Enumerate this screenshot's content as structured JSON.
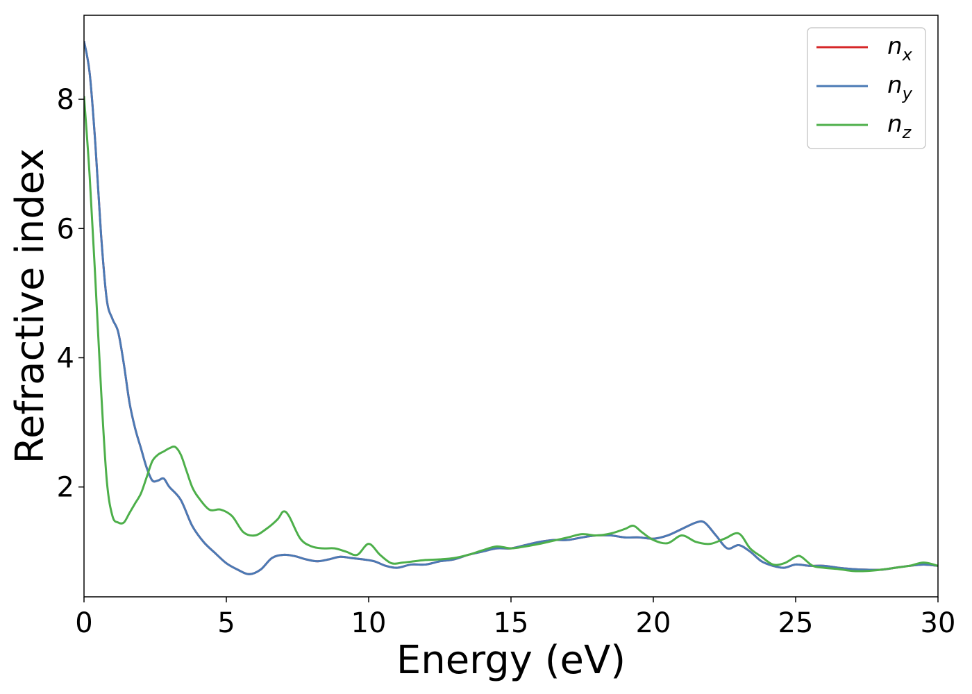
{
  "chart_data": {
    "type": "line",
    "title": "",
    "xlabel": "Energy (eV)",
    "ylabel": "Refractive index",
    "xlim": [
      0,
      30
    ],
    "ylim": [
      0.3,
      9.3
    ],
    "xticks": [
      0,
      5,
      10,
      15,
      20,
      25,
      30
    ],
    "yticks": [
      2,
      4,
      6,
      8
    ],
    "grid": false,
    "legend_position": "top-right",
    "series": [
      {
        "name": "n_x",
        "label_base": "n",
        "label_sub": "x",
        "color": "#d62728",
        "x": [
          0.0,
          0.2,
          0.4,
          0.6,
          0.8,
          1.0,
          1.2,
          1.4,
          1.6,
          1.8,
          2.0,
          2.2,
          2.4,
          2.6,
          2.8,
          3.0,
          3.4,
          3.8,
          4.2,
          4.6,
          5.0,
          5.4,
          5.8,
          6.2,
          6.6,
          7.0,
          7.4,
          7.8,
          8.2,
          8.6,
          9.0,
          9.4,
          9.8,
          10.2,
          10.6,
          11.0,
          11.5,
          12.0,
          12.5,
          13.0,
          13.5,
          14.0,
          14.5,
          15.0,
          15.5,
          16.0,
          16.5,
          17.0,
          17.5,
          18.0,
          18.5,
          19.0,
          19.5,
          20.0,
          20.5,
          21.0,
          21.5,
          21.8,
          22.2,
          22.6,
          23.0,
          23.4,
          23.8,
          24.2,
          24.6,
          25.0,
          25.5,
          26.0,
          26.5,
          27.0,
          27.5,
          28.0,
          28.5,
          29.0,
          29.5,
          30.0
        ],
        "y": [
          8.9,
          8.4,
          7.3,
          5.9,
          4.9,
          4.6,
          4.4,
          3.9,
          3.3,
          2.9,
          2.6,
          2.3,
          2.1,
          2.1,
          2.13,
          2.0,
          1.8,
          1.4,
          1.15,
          0.98,
          0.82,
          0.72,
          0.65,
          0.72,
          0.9,
          0.95,
          0.93,
          0.88,
          0.85,
          0.88,
          0.92,
          0.9,
          0.88,
          0.85,
          0.78,
          0.75,
          0.8,
          0.8,
          0.85,
          0.88,
          0.95,
          1.0,
          1.05,
          1.05,
          1.1,
          1.15,
          1.18,
          1.18,
          1.22,
          1.25,
          1.25,
          1.22,
          1.22,
          1.2,
          1.25,
          1.35,
          1.45,
          1.45,
          1.25,
          1.05,
          1.1,
          1.0,
          0.85,
          0.78,
          0.75,
          0.8,
          0.78,
          0.78,
          0.75,
          0.73,
          0.72,
          0.72,
          0.75,
          0.78,
          0.8,
          0.78
        ]
      },
      {
        "name": "n_y",
        "label_base": "n",
        "label_sub": "y",
        "color": "#4a7ab5",
        "x": [
          0.0,
          0.2,
          0.4,
          0.6,
          0.8,
          1.0,
          1.2,
          1.4,
          1.6,
          1.8,
          2.0,
          2.2,
          2.4,
          2.6,
          2.8,
          3.0,
          3.4,
          3.8,
          4.2,
          4.6,
          5.0,
          5.4,
          5.8,
          6.2,
          6.6,
          7.0,
          7.4,
          7.8,
          8.2,
          8.6,
          9.0,
          9.4,
          9.8,
          10.2,
          10.6,
          11.0,
          11.5,
          12.0,
          12.5,
          13.0,
          13.5,
          14.0,
          14.5,
          15.0,
          15.5,
          16.0,
          16.5,
          17.0,
          17.5,
          18.0,
          18.5,
          19.0,
          19.5,
          20.0,
          20.5,
          21.0,
          21.5,
          21.8,
          22.2,
          22.6,
          23.0,
          23.4,
          23.8,
          24.2,
          24.6,
          25.0,
          25.5,
          26.0,
          26.5,
          27.0,
          27.5,
          28.0,
          28.5,
          29.0,
          29.5,
          30.0
        ],
        "y": [
          8.9,
          8.4,
          7.3,
          5.9,
          4.9,
          4.6,
          4.4,
          3.9,
          3.3,
          2.9,
          2.6,
          2.3,
          2.1,
          2.1,
          2.13,
          2.0,
          1.8,
          1.4,
          1.15,
          0.98,
          0.82,
          0.72,
          0.65,
          0.72,
          0.9,
          0.95,
          0.93,
          0.88,
          0.85,
          0.88,
          0.92,
          0.9,
          0.88,
          0.85,
          0.78,
          0.75,
          0.8,
          0.8,
          0.85,
          0.88,
          0.95,
          1.0,
          1.05,
          1.05,
          1.1,
          1.15,
          1.18,
          1.18,
          1.22,
          1.25,
          1.25,
          1.22,
          1.22,
          1.2,
          1.25,
          1.35,
          1.45,
          1.45,
          1.25,
          1.05,
          1.1,
          1.0,
          0.85,
          0.78,
          0.75,
          0.8,
          0.78,
          0.78,
          0.75,
          0.73,
          0.72,
          0.72,
          0.75,
          0.78,
          0.8,
          0.78
        ]
      },
      {
        "name": "n_z",
        "label_base": "n",
        "label_sub": "z",
        "color": "#4daf4a",
        "x": [
          0.0,
          0.2,
          0.4,
          0.6,
          0.8,
          1.0,
          1.2,
          1.4,
          1.6,
          1.8,
          2.0,
          2.2,
          2.4,
          2.6,
          2.8,
          3.0,
          3.2,
          3.4,
          3.6,
          3.8,
          4.0,
          4.4,
          4.8,
          5.2,
          5.6,
          6.0,
          6.4,
          6.8,
          7.0,
          7.2,
          7.6,
          8.0,
          8.4,
          8.8,
          9.2,
          9.6,
          10.0,
          10.4,
          10.8,
          11.2,
          11.6,
          12.0,
          12.5,
          13.0,
          13.5,
          14.0,
          14.5,
          15.0,
          15.5,
          16.0,
          16.5,
          17.0,
          17.5,
          18.0,
          18.5,
          19.0,
          19.3,
          19.6,
          20.0,
          20.5,
          21.0,
          21.5,
          22.0,
          22.5,
          23.0,
          23.4,
          23.8,
          24.2,
          24.6,
          25.0,
          25.2,
          25.6,
          26.0,
          26.5,
          27.0,
          27.5,
          28.0,
          28.5,
          29.0,
          29.5,
          30.0
        ],
        "y": [
          8.05,
          6.8,
          5.2,
          3.5,
          2.1,
          1.55,
          1.45,
          1.45,
          1.6,
          1.75,
          1.9,
          2.15,
          2.4,
          2.5,
          2.55,
          2.6,
          2.62,
          2.5,
          2.25,
          2.0,
          1.85,
          1.65,
          1.65,
          1.55,
          1.3,
          1.25,
          1.35,
          1.5,
          1.62,
          1.55,
          1.2,
          1.08,
          1.05,
          1.05,
          1.0,
          0.95,
          1.12,
          0.95,
          0.82,
          0.83,
          0.85,
          0.87,
          0.88,
          0.9,
          0.95,
          1.02,
          1.08,
          1.05,
          1.08,
          1.12,
          1.17,
          1.22,
          1.27,
          1.25,
          1.28,
          1.35,
          1.4,
          1.3,
          1.18,
          1.13,
          1.25,
          1.15,
          1.12,
          1.2,
          1.28,
          1.05,
          0.92,
          0.8,
          0.82,
          0.92,
          0.92,
          0.78,
          0.75,
          0.73,
          0.7,
          0.7,
          0.72,
          0.75,
          0.78,
          0.83,
          0.78
        ]
      }
    ]
  }
}
